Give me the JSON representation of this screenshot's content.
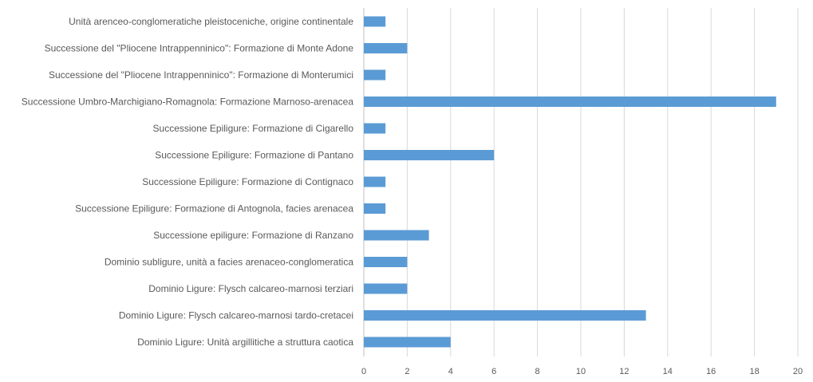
{
  "chart_data": {
    "type": "bar",
    "orientation": "horizontal",
    "categories": [
      "Unità arenceo-conglomeratiche pleistoceniche, origine continentale",
      "Successione del \"Pliocene Intrappenninico\": Formazione di Monte Adone",
      "Successione del \"Pliocene Intrappenninico\": Formazione di Monterumici",
      "Successione Umbro-Marchigiano-Romagnola: Formazione Marnoso-arenacea",
      "Successione Epiligure: Formazione di Cigarello",
      "Successione Epiligure: Formazione di Pantano",
      "Successione Epiligure: Formazione di Contignaco",
      "Successione Epiligure: Formazione di Antognola, facies arenacea",
      "Successione epiligure: Formazione di Ranzano",
      "Dominio subligure, unità a facies arenaceo-conglomeratica",
      "Dominio Ligure: Flysch calcareo-marnosi terziari",
      "Dominio Ligure: Flysch calcareo-marnosi tardo-cretacei",
      "Dominio Ligure: Unità argillitiche a struttura caotica"
    ],
    "values": [
      1,
      2,
      1,
      19,
      1,
      6,
      1,
      1,
      3,
      2,
      2,
      13,
      4
    ],
    "xlim": [
      0,
      20
    ],
    "xticks": [
      "0",
      "2",
      "4",
      "6",
      "8",
      "10",
      "12",
      "14",
      "16",
      "18",
      "20"
    ],
    "grid": "vertical",
    "legend": "none",
    "title": "",
    "xlabel": "",
    "ylabel": "",
    "bar_color": "#5B9BD5",
    "grid_color": "#D9D9D9"
  }
}
